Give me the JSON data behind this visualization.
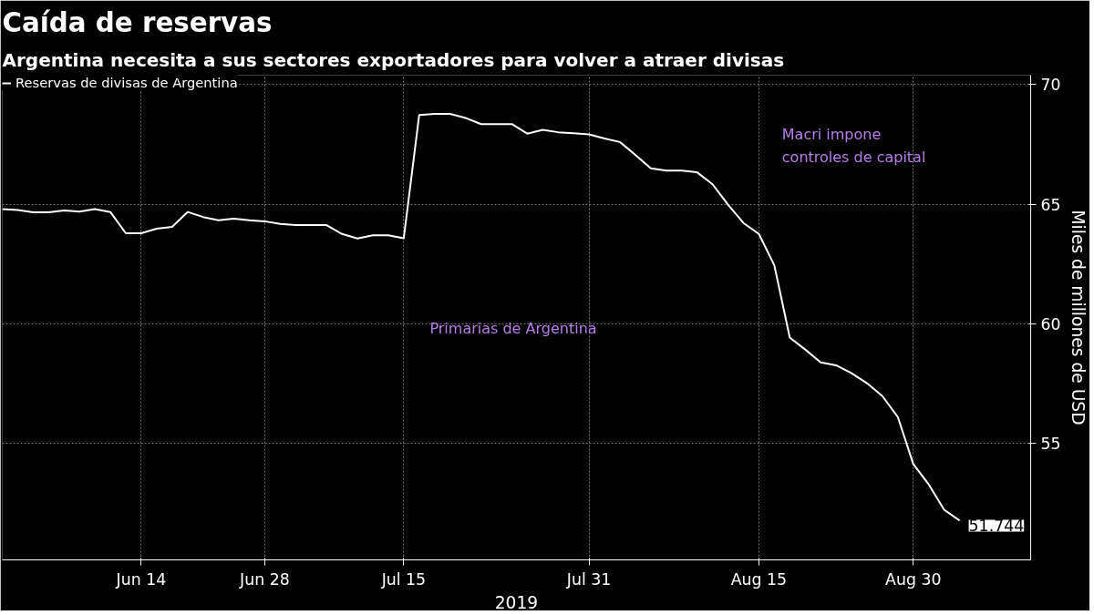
{
  "chart_data": {
    "type": "line",
    "title": "Caída de reservas",
    "subtitle": "Argentina necesita a sus sectores exportadores para volver a atraer divisas",
    "xlabel": "2019",
    "ylabel": "Miles de millones de USD",
    "categories": [
      null,
      null,
      null,
      null,
      null,
      null,
      null,
      null,
      null,
      "Jun 14",
      null,
      null,
      null,
      null,
      null,
      null,
      null,
      "Jun 28",
      null,
      null,
      null,
      null,
      null,
      null,
      null,
      null,
      "Jul 15",
      null,
      null,
      null,
      null,
      null,
      null,
      null,
      null,
      null,
      null,
      null,
      "Jul 31",
      null,
      null,
      null,
      null,
      null,
      null,
      null,
      null,
      null,
      null,
      "Aug 15",
      null,
      null,
      null,
      null,
      null,
      null,
      null,
      null,
      null,
      "Aug 30",
      null,
      null,
      null
    ],
    "series": [
      {
        "name": "Reservas de divisas de Argentina",
        "color": "#ffffff",
        "values": [
          64.79,
          64.75,
          64.66,
          64.66,
          64.73,
          64.69,
          64.79,
          64.67,
          63.78,
          63.78,
          63.97,
          64.05,
          64.67,
          64.46,
          64.32,
          64.39,
          64.32,
          64.28,
          64.17,
          64.12,
          64.12,
          64.12,
          63.75,
          63.56,
          63.69,
          63.69,
          63.57,
          68.73,
          68.78,
          68.78,
          68.61,
          68.35,
          68.35,
          68.35,
          67.95,
          68.11,
          68.01,
          67.97,
          67.92,
          67.75,
          67.6,
          67.06,
          66.5,
          66.4,
          66.4,
          66.33,
          65.83,
          64.98,
          64.21,
          63.75,
          62.44,
          59.41,
          58.91,
          58.37,
          58.25,
          57.92,
          57.5,
          56.96,
          56.08,
          54.11,
          53.26,
          52.2,
          51.744
        ],
        "value_labels": [
          null,
          null,
          null,
          null,
          null,
          null,
          null,
          null,
          null,
          null,
          null,
          null,
          null,
          null,
          null,
          null,
          null,
          null,
          null,
          null,
          null,
          null,
          null,
          null,
          null,
          null,
          null,
          null,
          null,
          null,
          null,
          null,
          null,
          null,
          null,
          null,
          null,
          null,
          null,
          null,
          null,
          null,
          null,
          null,
          null,
          null,
          null,
          null,
          null,
          null,
          null,
          null,
          null,
          null,
          null,
          null,
          null,
          null,
          null,
          null,
          null,
          null,
          "51.744"
        ]
      }
    ],
    "ylim": [
      50.1,
      70.4
    ],
    "yticks": [
      55,
      60,
      65,
      70
    ],
    "annotations": [
      "Primarias de Argentina",
      "Macri impone\ncontroles de capital"
    ],
    "grid": true,
    "legend": "top left"
  }
}
